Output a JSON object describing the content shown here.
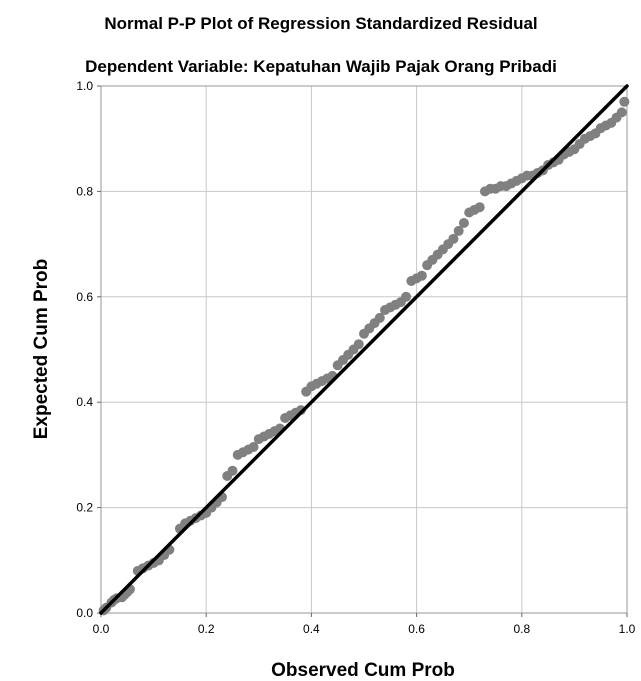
{
  "chart_data": {
    "type": "scatter",
    "title": "Normal P-P Plot of Regression Standardized Residual",
    "subtitle": "Dependent Variable: Kepatuhan Wajib Pajak Orang Pribadi",
    "xlabel": "Observed Cum Prob",
    "ylabel": "Expected Cum Prob",
    "xlim": [
      0,
      1
    ],
    "ylim": [
      0,
      1
    ],
    "x_ticks": [
      "0.0",
      "0.2",
      "0.4",
      "0.6",
      "0.8",
      "1.0"
    ],
    "y_ticks": [
      "0.0",
      "0.2",
      "0.4",
      "0.6",
      "0.8",
      "1.0"
    ],
    "grid": true,
    "reference_line": [
      [
        0,
        0
      ],
      [
        1,
        1
      ]
    ],
    "point_color": "#808080",
    "line_color": "#000000",
    "points": [
      [
        0.005,
        0.005
      ],
      [
        0.01,
        0.01
      ],
      [
        0.02,
        0.02
      ],
      [
        0.025,
        0.025
      ],
      [
        0.03,
        0.028
      ],
      [
        0.04,
        0.03
      ],
      [
        0.045,
        0.035
      ],
      [
        0.05,
        0.04
      ],
      [
        0.055,
        0.045
      ],
      [
        0.07,
        0.08
      ],
      [
        0.08,
        0.085
      ],
      [
        0.09,
        0.09
      ],
      [
        0.1,
        0.095
      ],
      [
        0.11,
        0.1
      ],
      [
        0.12,
        0.11
      ],
      [
        0.13,
        0.12
      ],
      [
        0.15,
        0.16
      ],
      [
        0.16,
        0.17
      ],
      [
        0.17,
        0.175
      ],
      [
        0.18,
        0.18
      ],
      [
        0.19,
        0.185
      ],
      [
        0.2,
        0.19
      ],
      [
        0.21,
        0.2
      ],
      [
        0.22,
        0.21
      ],
      [
        0.23,
        0.22
      ],
      [
        0.24,
        0.26
      ],
      [
        0.25,
        0.27
      ],
      [
        0.26,
        0.3
      ],
      [
        0.27,
        0.305
      ],
      [
        0.28,
        0.31
      ],
      [
        0.29,
        0.315
      ],
      [
        0.3,
        0.33
      ],
      [
        0.31,
        0.335
      ],
      [
        0.32,
        0.34
      ],
      [
        0.33,
        0.345
      ],
      [
        0.34,
        0.35
      ],
      [
        0.35,
        0.37
      ],
      [
        0.36,
        0.375
      ],
      [
        0.37,
        0.38
      ],
      [
        0.38,
        0.385
      ],
      [
        0.39,
        0.42
      ],
      [
        0.4,
        0.43
      ],
      [
        0.41,
        0.435
      ],
      [
        0.42,
        0.44
      ],
      [
        0.43,
        0.445
      ],
      [
        0.44,
        0.45
      ],
      [
        0.45,
        0.47
      ],
      [
        0.46,
        0.48
      ],
      [
        0.47,
        0.49
      ],
      [
        0.48,
        0.5
      ],
      [
        0.49,
        0.51
      ],
      [
        0.5,
        0.53
      ],
      [
        0.51,
        0.54
      ],
      [
        0.52,
        0.55
      ],
      [
        0.53,
        0.56
      ],
      [
        0.54,
        0.575
      ],
      [
        0.55,
        0.58
      ],
      [
        0.56,
        0.585
      ],
      [
        0.57,
        0.59
      ],
      [
        0.58,
        0.6
      ],
      [
        0.59,
        0.63
      ],
      [
        0.6,
        0.635
      ],
      [
        0.61,
        0.64
      ],
      [
        0.62,
        0.66
      ],
      [
        0.63,
        0.67
      ],
      [
        0.64,
        0.68
      ],
      [
        0.65,
        0.69
      ],
      [
        0.66,
        0.7
      ],
      [
        0.67,
        0.71
      ],
      [
        0.68,
        0.725
      ],
      [
        0.69,
        0.74
      ],
      [
        0.7,
        0.76
      ],
      [
        0.71,
        0.765
      ],
      [
        0.72,
        0.77
      ],
      [
        0.73,
        0.8
      ],
      [
        0.74,
        0.805
      ],
      [
        0.75,
        0.805
      ],
      [
        0.76,
        0.81
      ],
      [
        0.77,
        0.81
      ],
      [
        0.78,
        0.815
      ],
      [
        0.79,
        0.82
      ],
      [
        0.8,
        0.825
      ],
      [
        0.81,
        0.83
      ],
      [
        0.82,
        0.83
      ],
      [
        0.83,
        0.835
      ],
      [
        0.84,
        0.84
      ],
      [
        0.85,
        0.85
      ],
      [
        0.86,
        0.855
      ],
      [
        0.87,
        0.86
      ],
      [
        0.88,
        0.87
      ],
      [
        0.89,
        0.875
      ],
      [
        0.9,
        0.88
      ],
      [
        0.91,
        0.89
      ],
      [
        0.92,
        0.9
      ],
      [
        0.93,
        0.905
      ],
      [
        0.94,
        0.91
      ],
      [
        0.95,
        0.92
      ],
      [
        0.96,
        0.925
      ],
      [
        0.97,
        0.93
      ],
      [
        0.98,
        0.94
      ],
      [
        0.99,
        0.95
      ],
      [
        0.995,
        0.97
      ]
    ]
  }
}
